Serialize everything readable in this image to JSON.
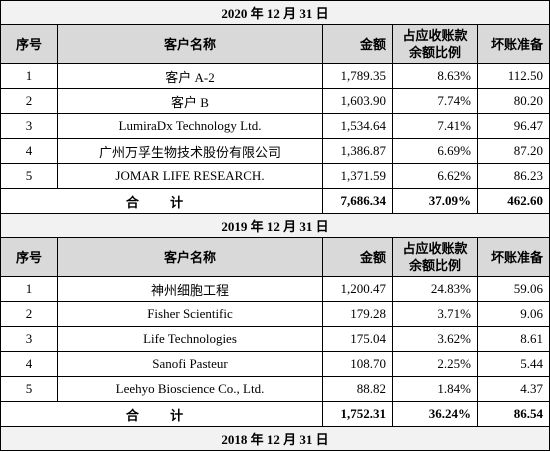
{
  "sections": [
    {
      "title": "2020 年 12 月 31 日",
      "header": [
        "序号",
        "客户名称",
        "金额",
        [
          "占应收账款",
          "余额比例"
        ],
        "坏账准备"
      ],
      "rows": [
        [
          "1",
          "客户 A-2",
          "1,789.35",
          "8.63%",
          "112.50"
        ],
        [
          "2",
          "客户 B",
          "1,603.90",
          "7.74%",
          "80.20"
        ],
        [
          "3",
          "LumiraDx Technology Ltd.",
          "1,534.64",
          "7.41%",
          "96.47"
        ],
        [
          "4",
          "广州万孚生物技术股份有限公司",
          "1,386.87",
          "6.69%",
          "87.20"
        ],
        [
          "5",
          "JOMAR LIFE RESEARCH.",
          "1,371.59",
          "6.62%",
          "86.23"
        ]
      ],
      "total": [
        "合 计",
        "7,686.34",
        "37.09%",
        "462.60"
      ]
    },
    {
      "title": "2019 年 12 月 31 日",
      "header": [
        "序号",
        "客户名称",
        "金额",
        [
          "占应收账款",
          "余额比例"
        ],
        "坏账准备"
      ],
      "rows": [
        [
          "1",
          "神州细胞工程",
          "1,200.47",
          "24.83%",
          "59.06"
        ],
        [
          "2",
          "Fisher Scientific",
          "179.28",
          "3.71%",
          "9.06"
        ],
        [
          "3",
          "Life Technologies",
          "175.04",
          "3.62%",
          "8.61"
        ],
        [
          "4",
          "Sanofi Pasteur",
          "108.70",
          "2.25%",
          "5.44"
        ],
        [
          "5",
          "Leehyo Bioscience Co., Ltd.",
          "88.82",
          "1.84%",
          "4.37"
        ]
      ],
      "total": [
        "合 计",
        "1,752.31",
        "36.24%",
        "86.54"
      ]
    },
    {
      "title": "2018 年 12 月 31 日"
    }
  ]
}
